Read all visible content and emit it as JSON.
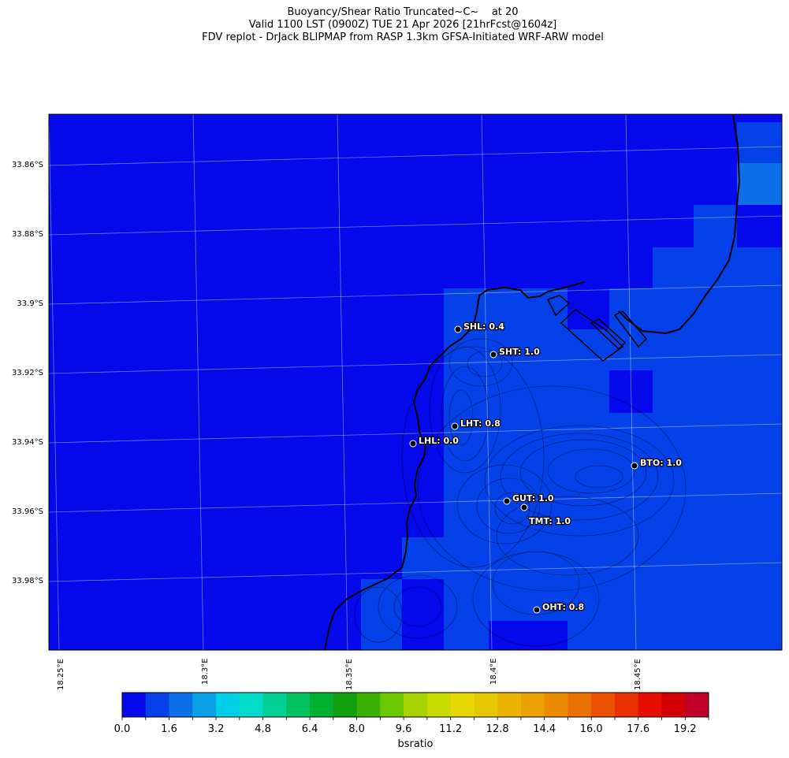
{
  "title": {
    "line1": "Buoyancy/Shear Ratio Truncated~C~    at 20",
    "line2": "Valid 1100 LST (0900Z) TUE 21 Apr 2026 [21hrFcst@1604z]",
    "line3": "FDV replot - DrJack BLIPMAP from RASP 1.3km GFSA-Initiated WRF-ARW model"
  },
  "map": {
    "lat_ticks": [
      "33.86°S",
      "33.88°S",
      "33.9°S",
      "33.92°S",
      "33.94°S",
      "33.96°S",
      "33.98°S"
    ],
    "lon_ticks": [
      "18.25°E",
      "18.3°E",
      "18.35°E",
      "18.4°E",
      "18.45°E"
    ],
    "background_color": "#0509eb",
    "stations": [
      {
        "code": "SHL",
        "value": 0.4,
        "label": "SHL: 0.4"
      },
      {
        "code": "SHT",
        "value": 1.0,
        "label": "SHT: 1.0"
      },
      {
        "code": "LHT",
        "value": 0.8,
        "label": "LHT: 0.8"
      },
      {
        "code": "LHL",
        "value": 0.0,
        "label": "LHL: 0.0"
      },
      {
        "code": "BTO",
        "value": 1.0,
        "label": "BTO: 1.0"
      },
      {
        "code": "GUT",
        "value": 1.0,
        "label": "GUT: 1.0"
      },
      {
        "code": "TMT",
        "value": 1.0,
        "label": "TMT: 1.0"
      },
      {
        "code": "OHT",
        "value": 0.8,
        "label": "OHT: 0.8"
      }
    ]
  },
  "colorbar": {
    "label": "bsratio",
    "tick_labels": [
      "0.0",
      "1.6",
      "3.2",
      "4.8",
      "6.4",
      "8.0",
      "9.6",
      "11.2",
      "12.8",
      "14.4",
      "16.0",
      "17.6",
      "19.2"
    ],
    "colors": [
      "#0509eb",
      "#0540e8",
      "#0a6fe8",
      "#0a9fe6",
      "#00d0e6",
      "#00dcc8",
      "#00cf96",
      "#00c060",
      "#00b030",
      "#10a010",
      "#3ab000",
      "#6ec800",
      "#a6d200",
      "#c8dc00",
      "#e6d800",
      "#e6c800",
      "#ecb400",
      "#eaa000",
      "#ea8a00",
      "#ea7000",
      "#ea5000",
      "#e83000",
      "#e40e00",
      "#d40008",
      "#c0002a"
    ]
  }
}
